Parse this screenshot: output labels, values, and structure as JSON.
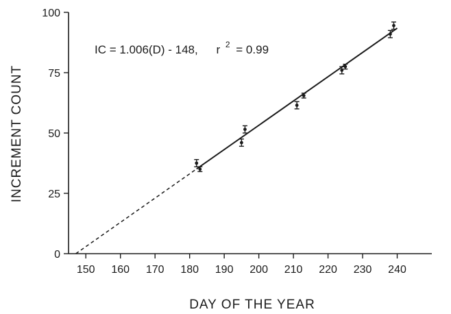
{
  "chart_data": {
    "type": "scatter",
    "xlabel": "DAY OF THE YEAR",
    "ylabel": "INCREMENT COUNT",
    "xlim": [
      145,
      250
    ],
    "ylim": [
      0,
      100
    ],
    "xticks": [
      150,
      160,
      170,
      180,
      190,
      200,
      210,
      220,
      230,
      240
    ],
    "yticks": [
      0,
      25,
      50,
      75,
      100
    ],
    "grid": false,
    "annotation": "IC = 1.006(D) - 148,    r² = 0.99",
    "annotation_parts": {
      "equation": "IC = 1.006(D) - 148,",
      "r_prefix": "r",
      "r_exp": "2",
      "r_value": "= 0.99"
    },
    "series": [
      {
        "points": [
          {
            "x": 182,
            "y": 37.5,
            "err": 1.5
          },
          {
            "x": 183,
            "y": 35.0,
            "err": 1.0
          },
          {
            "x": 195,
            "y": 46.0,
            "err": 1.5
          },
          {
            "x": 196,
            "y": 51.5,
            "err": 1.5
          },
          {
            "x": 211,
            "y": 61.5,
            "err": 1.5
          },
          {
            "x": 213,
            "y": 65.5,
            "err": 1.0
          },
          {
            "x": 224,
            "y": 76.0,
            "err": 1.5
          },
          {
            "x": 225,
            "y": 77.5,
            "err": 1.0
          },
          {
            "x": 238,
            "y": 91.0,
            "err": 1.5
          },
          {
            "x": 239,
            "y": 94.5,
            "err": 1.5
          }
        ]
      }
    ],
    "fit": {
      "slope": 1.006,
      "intercept": -148,
      "solid_range": [
        182,
        240
      ],
      "dashed_range": [
        147.1,
        182
      ]
    },
    "colors": {
      "ink": "#1a1a1a",
      "background": "#ffffff"
    }
  }
}
